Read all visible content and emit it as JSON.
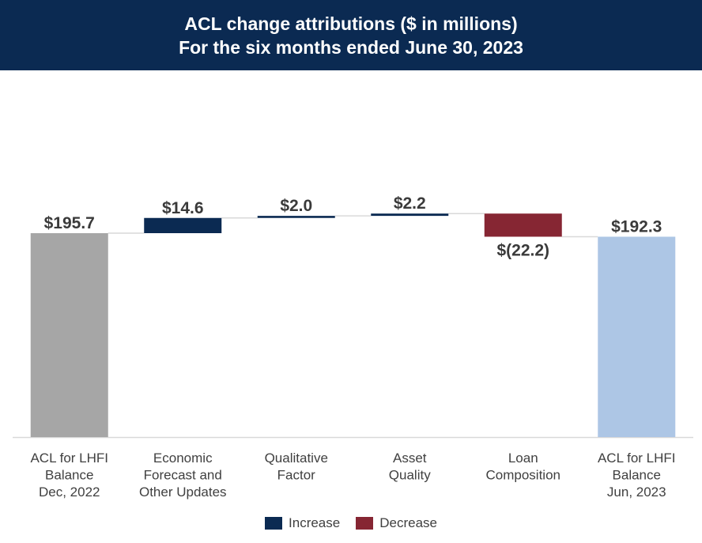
{
  "header": {
    "title_line1": "ACL change attributions ($ in millions)",
    "title_line2": "For the six months ended June 30, 2023"
  },
  "colors": {
    "header_bg": "#0b2a52",
    "increase": "#0b2a52",
    "decrease": "#862633",
    "start_total": "#a6a6a6",
    "end_total": "#adc6e5",
    "connector": "#d9d9d9",
    "axis": "#d9d9d9"
  },
  "chart_data": {
    "type": "waterfall",
    "title": "ACL change attributions ($ in millions)",
    "subtitle": "For the six months ended June 30, 2023",
    "ylim": [
      0,
      240
    ],
    "grid": false,
    "legend_position": "bottom",
    "categories": [
      [
        "ACL for LHFI",
        "Balance",
        "Dec, 2022"
      ],
      [
        "Economic",
        "Forecast and",
        "Other Updates"
      ],
      [
        "Qualitative",
        "Factor"
      ],
      [
        "Asset",
        "Quality"
      ],
      [
        "Loan",
        "Composition"
      ],
      [
        "ACL for LHFI",
        "Balance",
        "Jun, 2023"
      ]
    ],
    "values": [
      195.7,
      14.6,
      2.0,
      2.2,
      -22.2,
      192.3
    ],
    "kinds": [
      "total",
      "increase",
      "increase",
      "increase",
      "decrease",
      "total"
    ],
    "data_labels": [
      "$195.7",
      "$14.6",
      "$2.0",
      "$2.2",
      "$(22.2)",
      "$192.3"
    ],
    "legend": [
      {
        "label": "Increase",
        "kind": "increase"
      },
      {
        "label": "Decrease",
        "kind": "decrease"
      }
    ]
  }
}
